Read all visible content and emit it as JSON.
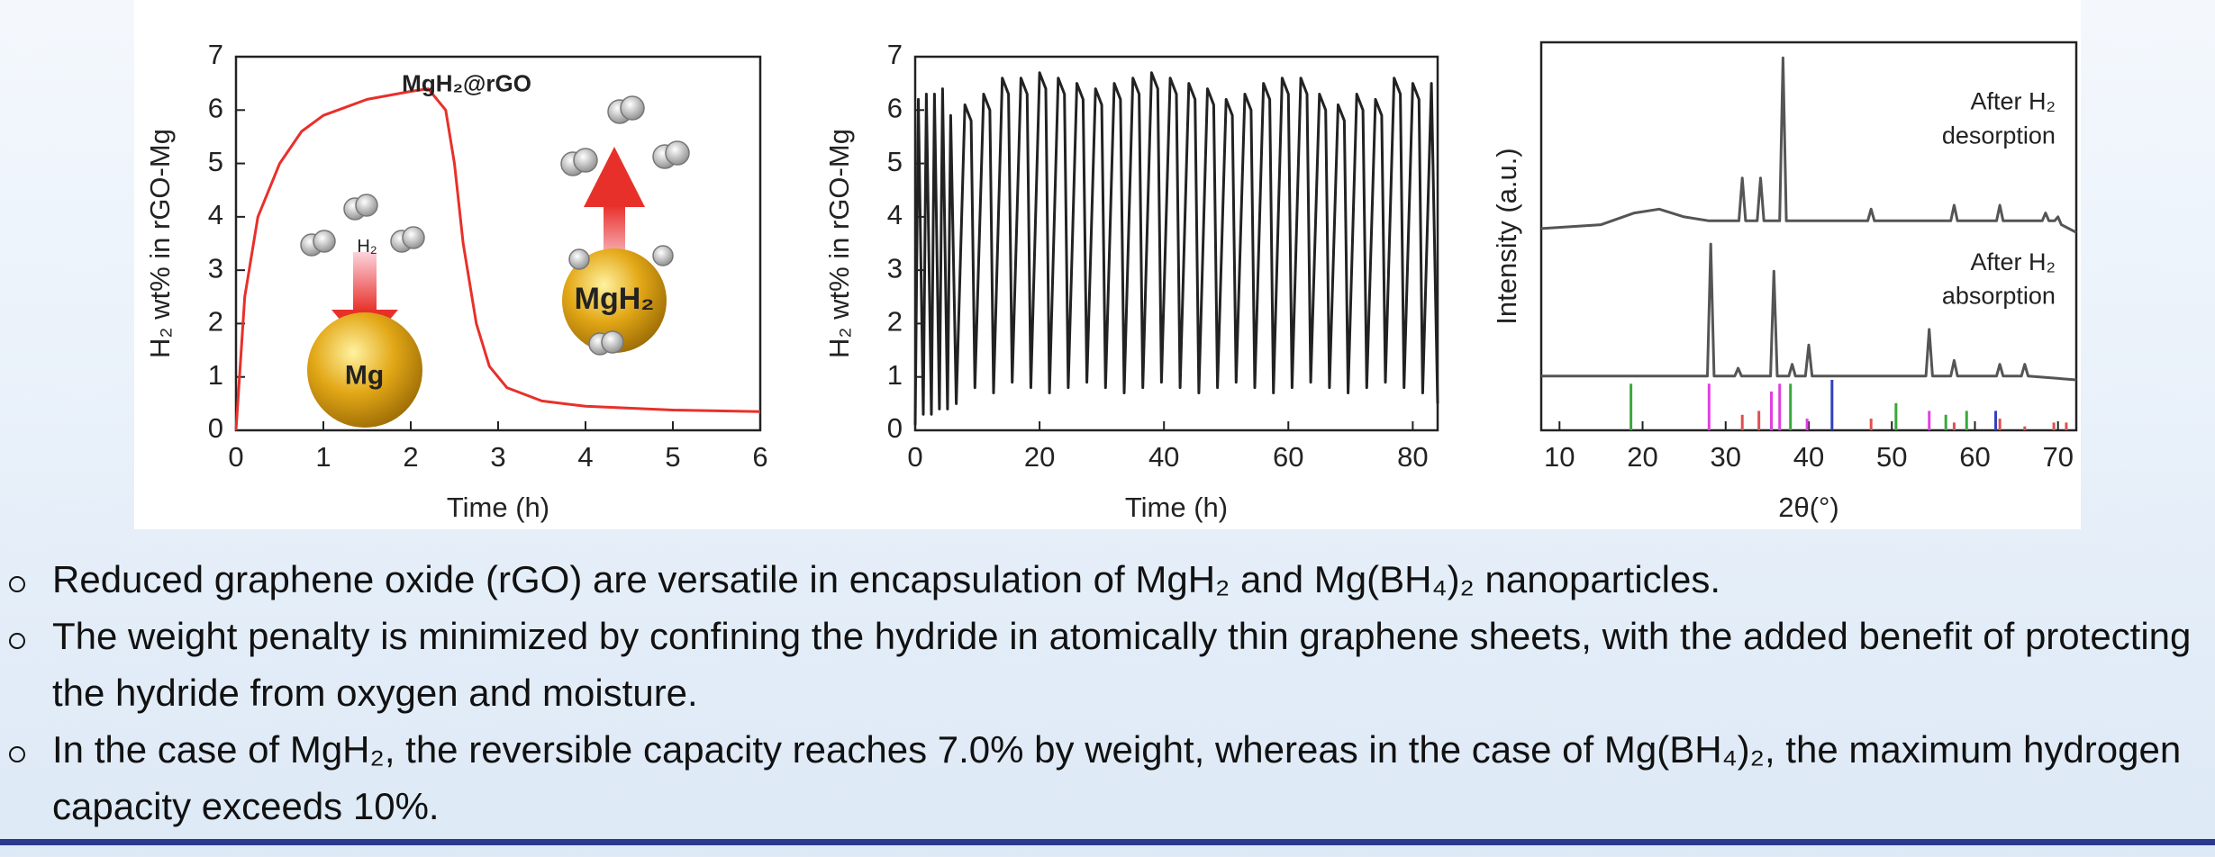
{
  "chart_data": [
    {
      "type": "line",
      "x_label": "Time (h)",
      "y_label": "H₂ wt% in rGO-Mg",
      "xlim": [
        0,
        6
      ],
      "xticks": [
        0,
        1,
        2,
        3,
        4,
        5,
        6
      ],
      "ylim": [
        0,
        7
      ],
      "yticks": [
        0,
        1,
        2,
        3,
        4,
        5,
        6,
        7
      ],
      "annotations": [
        "MgH₂@rGO",
        "H₂",
        "Mg",
        "MgH₂"
      ],
      "series": [
        {
          "color": "#e8302a",
          "x": [
            0,
            0.1,
            0.25,
            0.5,
            0.75,
            1,
            1.5,
            2,
            2.2,
            2.4,
            2.5,
            2.6,
            2.75,
            2.9,
            3.1,
            3.5,
            4,
            5,
            6
          ],
          "values": [
            0,
            2.5,
            4.0,
            5.0,
            5.6,
            5.9,
            6.2,
            6.35,
            6.4,
            6.0,
            5.0,
            3.5,
            2.0,
            1.2,
            0.8,
            0.55,
            0.45,
            0.38,
            0.35
          ]
        }
      ]
    },
    {
      "type": "line",
      "x_label": "Time (h)",
      "y_label": "H₂ wt% in rGO-Mg",
      "xlim": [
        0,
        84
      ],
      "xticks": [
        0,
        20,
        40,
        60,
        80
      ],
      "ylim": [
        0,
        7
      ],
      "yticks": [
        0,
        1,
        2,
        3,
        4,
        5,
        6,
        7
      ],
      "series": [
        {
          "color": "#222222",
          "x": [
            0,
            0.5,
            1.3,
            1.8,
            2.6,
            3.1,
            3.9,
            4.4,
            5.2,
            5.7,
            6.6,
            8,
            9,
            9.6,
            11,
            12,
            12.6,
            14,
            15,
            15.6,
            17,
            18,
            18.6,
            20,
            21,
            21.6,
            23,
            24,
            24.6,
            26,
            27,
            27.6,
            29,
            30,
            30.6,
            32,
            33,
            33.6,
            35,
            36,
            36.6,
            38,
            39,
            39.6,
            41,
            42,
            42.6,
            44,
            45,
            45.6,
            47,
            48,
            48.6,
            50,
            51,
            51.6,
            53,
            54,
            54.6,
            56,
            57,
            57.6,
            59,
            60,
            60.6,
            62,
            63,
            63.6,
            65,
            66,
            66.6,
            68,
            69,
            69.6,
            71,
            72,
            72.6,
            74,
            75,
            75.6,
            77,
            78,
            78.6,
            80,
            81,
            81.6,
            83,
            84
          ],
          "values": [
            0.1,
            6.2,
            0.3,
            6.3,
            0.3,
            6.3,
            0.4,
            6.4,
            0.4,
            5.9,
            0.5,
            6.1,
            5.8,
            0.8,
            6.3,
            6.0,
            0.7,
            6.6,
            6.3,
            0.9,
            6.6,
            6.3,
            0.8,
            6.7,
            6.4,
            0.7,
            6.6,
            6.3,
            0.8,
            6.5,
            6.2,
            0.9,
            6.4,
            6.1,
            0.8,
            6.5,
            6.2,
            0.7,
            6.6,
            6.3,
            0.8,
            6.7,
            6.4,
            0.9,
            6.6,
            6.3,
            0.8,
            6.5,
            6.2,
            0.7,
            6.4,
            6.1,
            0.8,
            6.2,
            5.9,
            0.9,
            6.3,
            6.0,
            0.8,
            6.5,
            6.2,
            0.7,
            6.6,
            6.3,
            0.8,
            6.6,
            6.3,
            0.9,
            6.3,
            6.0,
            0.8,
            6.1,
            5.8,
            0.7,
            6.3,
            6.0,
            0.8,
            6.2,
            5.9,
            0.9,
            6.6,
            6.3,
            0.8,
            6.5,
            6.2,
            0.7,
            6.5,
            0.5
          ]
        }
      ]
    },
    {
      "type": "line",
      "x_label": "2θ(°)",
      "y_label": "Intensity (a.u.)",
      "xlim": [
        7.8,
        72.2
      ],
      "xticks": [
        10,
        20,
        30,
        40,
        50,
        60,
        70
      ],
      "ylim": [
        0,
        100
      ],
      "annotations": [
        "After H₂",
        "desorption",
        "After H₂",
        "absorption"
      ],
      "series": [
        {
          "color": "#555555",
          "x": [
            7.8,
            15,
            19,
            22,
            25,
            28,
            31.6,
            32,
            32.4,
            33.8,
            34.2,
            34.6,
            36.5,
            36.9,
            37.3,
            40,
            47.1,
            47.5,
            47.9,
            57.1,
            57.5,
            57.9,
            62.6,
            63,
            63.4,
            68.1,
            68.5,
            68.9,
            69.6,
            70,
            70.4,
            72.2
          ],
          "values": [
            52,
            53,
            56,
            57,
            55,
            54,
            54,
            65,
            54,
            54,
            65,
            54,
            54,
            96,
            54,
            54,
            54,
            57,
            54,
            54,
            58,
            54,
            54,
            58,
            54,
            54,
            56,
            54,
            54,
            55,
            53,
            51
          ]
        },
        {
          "color": "#555555",
          "x": [
            7.8,
            27.8,
            28.2,
            28.6,
            31.1,
            31.5,
            31.9,
            35.4,
            35.8,
            36.2,
            37.6,
            38,
            38.4,
            39.6,
            40,
            40.4,
            54.1,
            54.5,
            54.9,
            57.1,
            57.5,
            57.9,
            62.6,
            63,
            63.4,
            65.6,
            66,
            66.4,
            72.2
          ],
          "values": [
            14,
            14,
            48,
            14,
            14,
            16,
            14,
            14,
            41,
            14,
            14,
            17,
            14,
            14,
            22,
            14,
            14,
            26,
            14,
            14,
            18,
            14,
            14,
            17,
            14,
            14,
            17,
            14,
            13
          ]
        },
        {
          "style": "stem",
          "color": "#3aa83a",
          "x": [
            18.6,
            37.8,
            50.5,
            56.5,
            59
          ],
          "values": [
            12,
            12,
            7,
            4,
            5
          ]
        },
        {
          "style": "stem",
          "color": "#e040e0",
          "x": [
            28,
            35.5,
            36.5,
            39.8,
            54.5
          ],
          "values": [
            12,
            10,
            12,
            3,
            5
          ]
        },
        {
          "style": "stem",
          "color": "#e05050",
          "x": [
            32,
            34,
            47.5,
            57.5,
            63,
            66,
            69.5,
            71
          ],
          "values": [
            4,
            5,
            3,
            2,
            3,
            1,
            2,
            2
          ]
        },
        {
          "style": "stem",
          "color": "#3040c0",
          "x": [
            42.8,
            62.5
          ],
          "values": [
            13,
            5
          ]
        }
      ]
    }
  ],
  "bullets": [
    "Reduced graphene oxide (rGO) are versatile in encapsulation of MgH₂ and Mg(BH₄)₂ nanoparticles.",
    "The weight penalty is minimized by confining the hydride in atomically thin graphene sheets, with the added benefit of protecting the hydride from oxygen and moisture.",
    "In the case of MgH₂, the reversible capacity reaches 7.0% by weight, whereas in the case of Mg(BH₄)₂, the maximum hydrogen capacity exceeds 10%."
  ]
}
